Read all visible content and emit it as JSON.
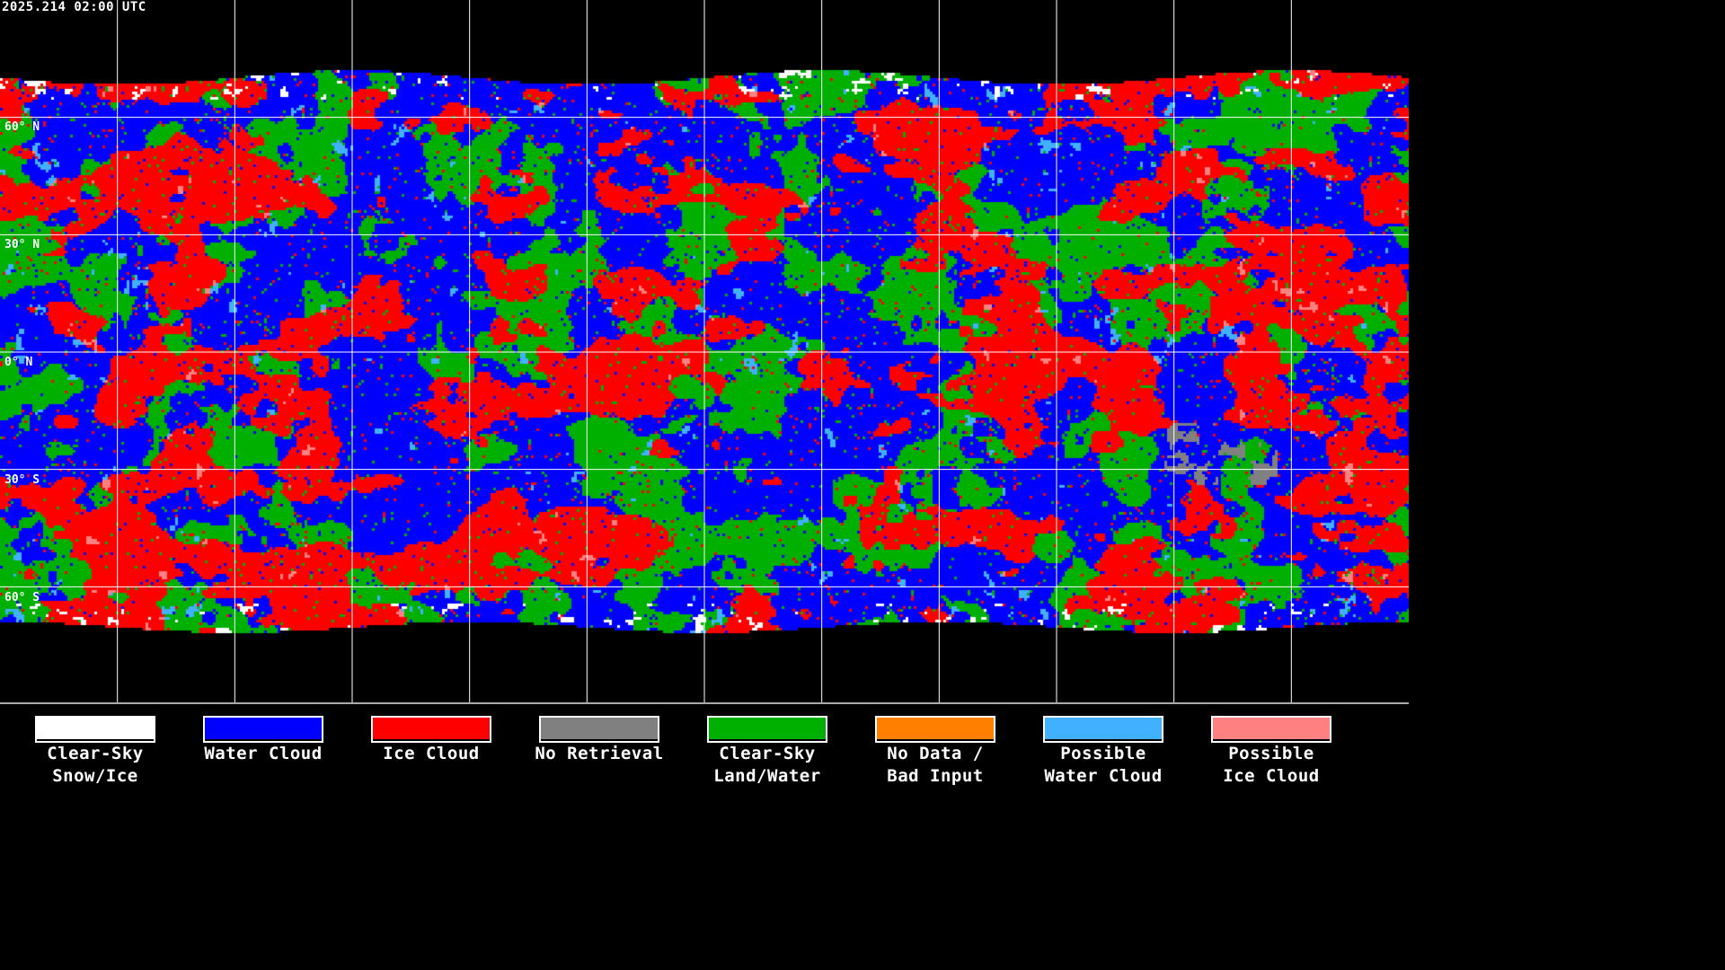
{
  "title": "2025.214 02:00 UTC",
  "latitude_labels": [
    "60° N",
    "30° N",
    "0° N",
    "30° S",
    "60° S"
  ],
  "legend": [
    {
      "line1": "Clear-Sky",
      "line2": "Snow/Ice",
      "color": "#ffffff"
    },
    {
      "line1": "Water Cloud",
      "line2": "",
      "color": "#0000ff"
    },
    {
      "line1": "Ice Cloud",
      "line2": "",
      "color": "#ff0000"
    },
    {
      "line1": "No Retrieval",
      "line2": "",
      "color": "#808080"
    },
    {
      "line1": "Clear-Sky",
      "line2": "Land/Water",
      "color": "#00b000"
    },
    {
      "line1": "No Data /",
      "line2": "Bad Input",
      "color": "#ff8000"
    },
    {
      "line1": "Possible",
      "line2": "Water Cloud",
      "color": "#40b0ff"
    },
    {
      "line1": "Possible",
      "line2": "Ice Cloud",
      "color": "#ff8080"
    }
  ]
}
